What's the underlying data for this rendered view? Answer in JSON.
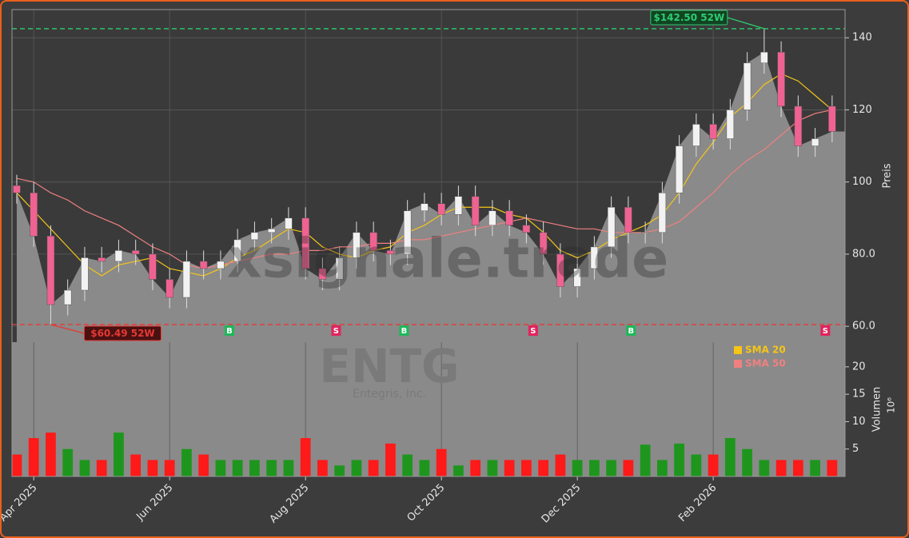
{
  "chart_data": [
    {
      "type": "candlestick",
      "title": "ENTG",
      "subtitle": "Entegris, Inc.",
      "watermark": "xsignale.trade",
      "y_label": "Preis",
      "x": [
        0.75,
        1.0,
        1.25,
        1.5,
        1.75,
        2.0,
        2.25,
        2.5,
        2.75,
        3.0,
        3.25,
        3.5,
        3.75,
        4.0,
        4.25,
        4.5,
        4.75,
        5.0,
        5.25,
        5.5,
        5.75,
        6.0,
        6.25,
        6.5,
        6.75,
        7.0,
        7.25,
        7.5,
        7.75,
        8.0,
        8.25,
        8.5,
        8.75,
        9.0,
        9.25,
        9.5,
        9.75,
        10.0,
        10.25,
        10.5,
        10.75,
        11.0,
        11.25,
        11.5,
        11.75,
        12.0,
        12.25,
        12.5,
        12.75
      ],
      "open": [
        99,
        97,
        85,
        66,
        70,
        79,
        78,
        81,
        80,
        73,
        68,
        78,
        76,
        78,
        84,
        86,
        87,
        90,
        76,
        73,
        79,
        86,
        81,
        80,
        92,
        94,
        91,
        96,
        88,
        92,
        88,
        86,
        80,
        71,
        76,
        82,
        93,
        86,
        86,
        97,
        110,
        116,
        112,
        120,
        133,
        136,
        121,
        110,
        121
      ],
      "high": [
        102,
        100,
        88,
        73,
        82,
        82,
        84,
        84,
        83,
        76,
        81,
        81,
        81,
        87,
        89,
        90,
        93,
        93,
        79,
        82,
        89,
        89,
        84,
        95,
        97,
        97,
        99,
        99,
        95,
        95,
        91,
        89,
        83,
        79,
        85,
        96,
        96,
        89,
        100,
        113,
        119,
        119,
        123,
        136,
        142.5,
        139,
        124,
        115,
        124
      ],
      "low": [
        94,
        82,
        60.49,
        63,
        67,
        75,
        75,
        77,
        70,
        65,
        65,
        73,
        73,
        75,
        81,
        83,
        84,
        73,
        70,
        70,
        76,
        78,
        77,
        77,
        89,
        88,
        88,
        85,
        85,
        85,
        83,
        77,
        68,
        68,
        73,
        79,
        83,
        83,
        83,
        94,
        107,
        109,
        109,
        117,
        130,
        118,
        107,
        107,
        111
      ],
      "close": [
        97,
        85,
        66,
        70,
        79,
        78,
        81,
        80,
        73,
        68,
        78,
        76,
        78,
        84,
        86,
        87,
        90,
        76,
        73,
        79,
        86,
        81,
        80,
        92,
        94,
        91,
        96,
        88,
        92,
        88,
        86,
        80,
        71,
        76,
        82,
        93,
        86,
        86,
        97,
        110,
        116,
        112,
        120,
        133,
        136,
        121,
        110,
        112,
        114
      ],
      "up_color": "#f2f2f2",
      "down_color": "#f06292",
      "area_color": "#8a8a8a",
      "series": [
        {
          "name": "SMA 20",
          "color": "#f5c518",
          "values": [
            97,
            92,
            87,
            82,
            77,
            74,
            77,
            78,
            79,
            76,
            75,
            74,
            76,
            79,
            81,
            84,
            87,
            86,
            82,
            80,
            79,
            81,
            82,
            86,
            88,
            91,
            93,
            93,
            93,
            91,
            90,
            86,
            81,
            79,
            81,
            84,
            86,
            88,
            91,
            97,
            105,
            111,
            118,
            122,
            127,
            130,
            128,
            124,
            120
          ]
        },
        {
          "name": "SMA 50",
          "color": "#f08080",
          "values": [
            101,
            100,
            97,
            95,
            92,
            90,
            88,
            85,
            82,
            80,
            77,
            76,
            77,
            78,
            79,
            80,
            80,
            81,
            81,
            82,
            82,
            83,
            83,
            84,
            84,
            85,
            86,
            87,
            88,
            89,
            90,
            89,
            88,
            87,
            87,
            86,
            86,
            86,
            87,
            89,
            93,
            97,
            102,
            106,
            109,
            113,
            117,
            119,
            120
          ]
        }
      ],
      "signals": {
        "x": [
          3.88,
          5.45,
          6.45,
          8.35,
          9.79,
          12.65
        ],
        "labels": [
          "B",
          "S",
          "B",
          "S",
          "B",
          "S"
        ],
        "buy_color": "#1fb85a",
        "sell_color": "#e0245e"
      },
      "annotations": [
        {
          "text": "$142.50 52W",
          "value": 142.5,
          "x": 11.75,
          "color": "#2ecc71"
        },
        {
          "text": "$60.49 52W",
          "value": 60.49,
          "x": 1.25,
          "color": "#e53935"
        }
      ],
      "xlim": [
        0.68,
        12.94
      ],
      "xticks": [
        {
          "value": 1,
          "label": "Apr 2025"
        },
        {
          "value": 3,
          "label": "Jun 2025"
        },
        {
          "value": 5,
          "label": "Aug 2025"
        },
        {
          "value": 7,
          "label": "Oct 2025"
        },
        {
          "value": 9,
          "label": "Dec 2025"
        },
        {
          "value": 11,
          "label": "Feb 2026"
        }
      ],
      "ylim": [
        55.6,
        147.8
      ],
      "yticks": [
        {
          "value": 60,
          "label": "60.0"
        },
        {
          "value": 80,
          "label": "80.0"
        },
        100,
        120,
        140
      ],
      "grid": true
    },
    {
      "type": "bar",
      "y_label": "Volumen",
      "unit_label": "10⁶",
      "values": [
        4,
        7,
        8,
        5,
        3,
        3,
        8,
        4,
        3,
        3,
        5,
        4,
        3,
        3,
        3,
        3,
        3,
        7,
        3,
        2,
        3,
        3,
        6,
        4,
        3,
        5,
        2,
        3,
        3,
        3,
        3,
        3,
        4,
        3,
        3,
        3,
        3,
        5.8,
        3,
        6,
        4,
        4,
        7,
        5,
        3,
        3,
        3,
        3,
        3
      ],
      "up_color": "#1e961e",
      "down_color": "#ff1a1a",
      "background": "#8a8a8a",
      "ylim": [
        0,
        24.5
      ],
      "yticks": [
        5,
        10,
        15,
        20
      ]
    }
  ]
}
